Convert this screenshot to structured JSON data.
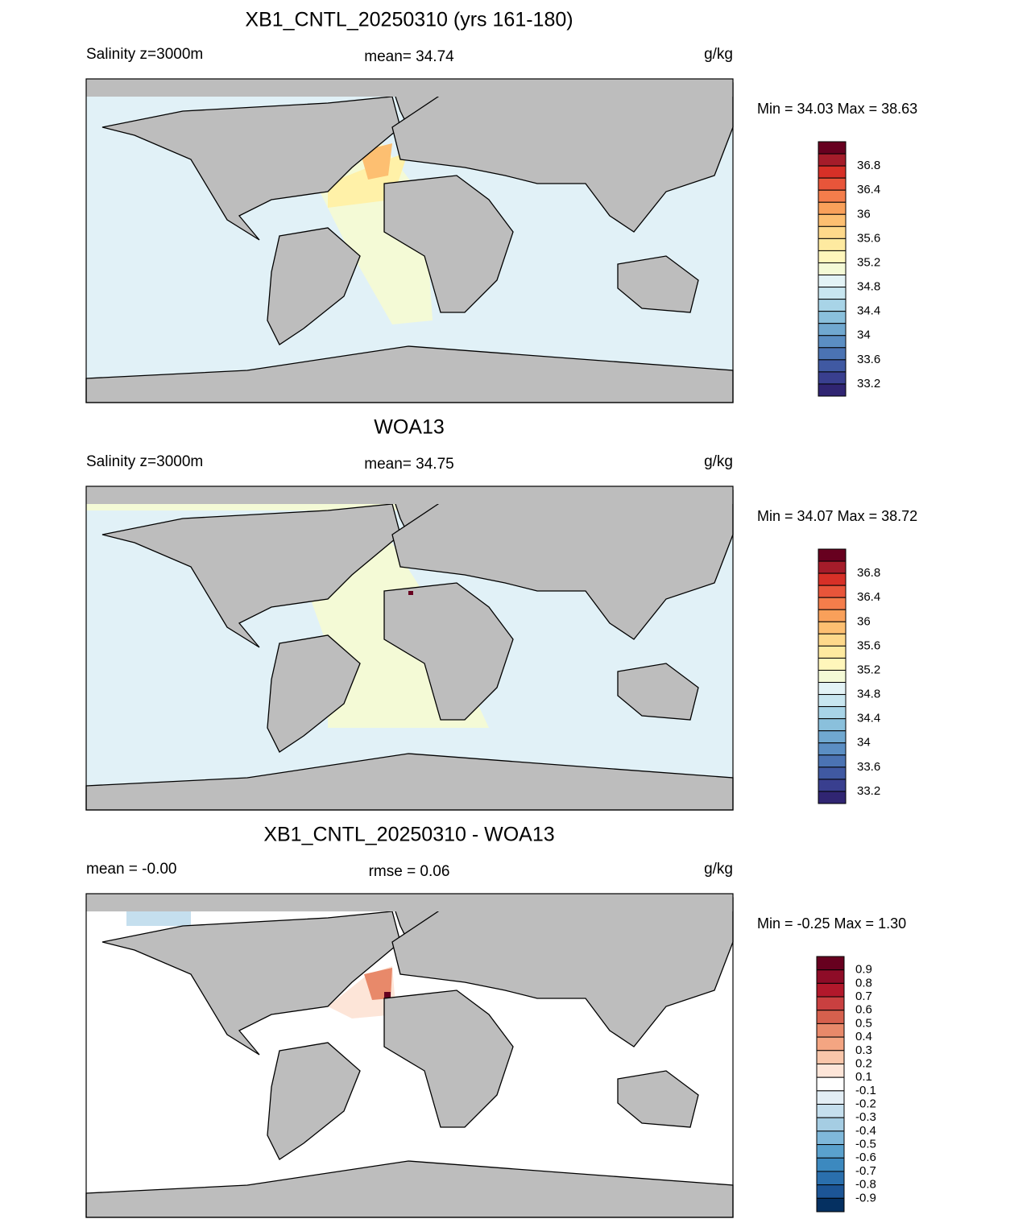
{
  "panels": [
    {
      "title": "XB1_CNTL_20250310 (yrs 161-180)",
      "left": "Salinity z=3000m",
      "center": "mean=  34.74",
      "right": "g/kg",
      "minmax": "Min =  34.03 Max =  38.63",
      "colorbar": {
        "labels": [
          "36.8",
          "36.4",
          "36",
          "35.6",
          "35.2",
          "34.8",
          "34.4",
          "34",
          "33.6",
          "33.2"
        ],
        "colors": [
          "#67001f",
          "#a51c2a",
          "#d73027",
          "#e8553a",
          "#f47d4b",
          "#f9a05a",
          "#fdbf71",
          "#fed98b",
          "#feeaa0",
          "#fff6bb",
          "#f4fad6",
          "#e3f3f6",
          "#c8e6f0",
          "#a8d4e7",
          "#8ac0dc",
          "#70a8d0",
          "#5b8ec3",
          "#4b73b3",
          "#4059a2",
          "#393f8f",
          "#302572"
        ]
      }
    },
    {
      "title": "WOA13",
      "left": "Salinity z=3000m",
      "center": "mean=  34.75",
      "right": "g/kg",
      "minmax": "Min =  34.07 Max =  38.72",
      "colorbar": {
        "labels": [
          "36.8",
          "36.4",
          "36",
          "35.6",
          "35.2",
          "34.8",
          "34.4",
          "34",
          "33.6",
          "33.2"
        ],
        "colors": [
          "#67001f",
          "#a51c2a",
          "#d73027",
          "#e8553a",
          "#f47d4b",
          "#f9a05a",
          "#fdbf71",
          "#fed98b",
          "#feeaa0",
          "#fff6bb",
          "#f4fad6",
          "#e3f3f6",
          "#c8e6f0",
          "#a8d4e7",
          "#8ac0dc",
          "#70a8d0",
          "#5b8ec3",
          "#4b73b3",
          "#4059a2",
          "#393f8f",
          "#302572"
        ]
      }
    },
    {
      "title": "XB1_CNTL_20250310 - WOA13",
      "left": "mean =  -0.00",
      "center": "rmse =   0.06",
      "right": "g/kg",
      "minmax": "Min =  -0.25 Max =   1.30",
      "colorbar": {
        "labels": [
          "0.9",
          "0.8",
          "0.7",
          "0.6",
          "0.5",
          "0.4",
          "0.3",
          "0.2",
          "0.1",
          "-0.1",
          "-0.2",
          "-0.3",
          "-0.4",
          "-0.5",
          "-0.6",
          "-0.7",
          "-0.8",
          "-0.9"
        ],
        "colors": [
          "#67001f",
          "#8e0c27",
          "#b2182b",
          "#c94040",
          "#d6604d",
          "#e8896a",
          "#f4a582",
          "#f9c6aa",
          "#fde5d8",
          "#ffffff",
          "#e3eef5",
          "#c5dfee",
          "#a5cde3",
          "#7fb8da",
          "#5aa1cd",
          "#3c89bf",
          "#2a6fad",
          "#1c5596",
          "#053061"
        ]
      }
    }
  ]
}
